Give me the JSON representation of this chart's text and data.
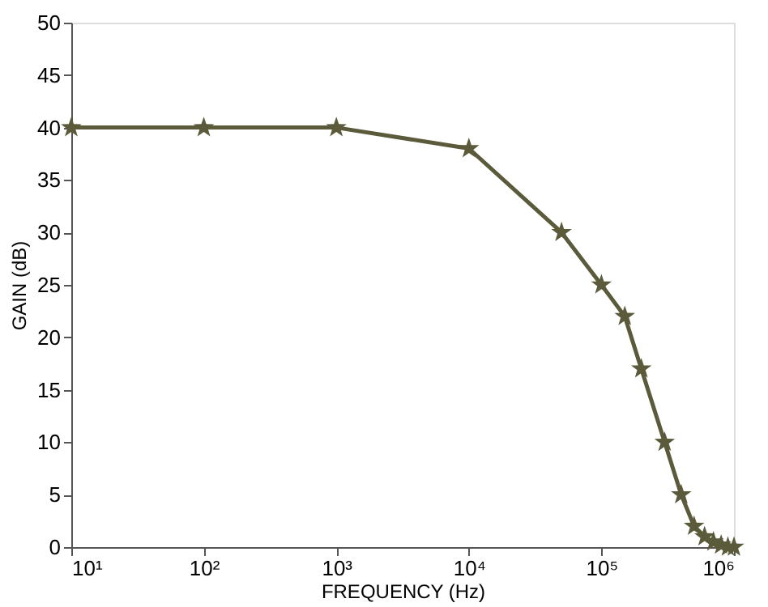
{
  "chart_data": {
    "type": "line",
    "xlabel": "FREQUENCY (Hz)",
    "ylabel": "GAIN (dB)",
    "x": [
      10,
      100,
      1000,
      10000,
      50000,
      100000,
      150000,
      200000,
      300000,
      400000,
      500000,
      600000,
      700000,
      800000,
      900000,
      1000000
    ],
    "series": [
      {
        "color": "#5b5b3c",
        "values": [
          40,
          40,
          40,
          38,
          30,
          25,
          22,
          17,
          10,
          5,
          2,
          1,
          0.5,
          0.2,
          0,
          0
        ]
      }
    ],
    "log": "x",
    "xlim": [
      10,
      1000000
    ],
    "xticks": [
      {
        "value": 10,
        "label": "10¹"
      },
      {
        "value": 100,
        "label": "10²"
      },
      {
        "value": 1000,
        "label": "10³"
      },
      {
        "value": 10000,
        "label": "10⁴"
      },
      {
        "value": 100000,
        "label": "10⁵"
      },
      {
        "value": 1000000,
        "label": "10⁶"
      }
    ],
    "ylim": [
      0,
      50
    ],
    "yticks": [
      0,
      5,
      10,
      15,
      20,
      25,
      30,
      35,
      40,
      45,
      50
    ],
    "grid": false,
    "marker": "star",
    "line_style": "solid"
  }
}
